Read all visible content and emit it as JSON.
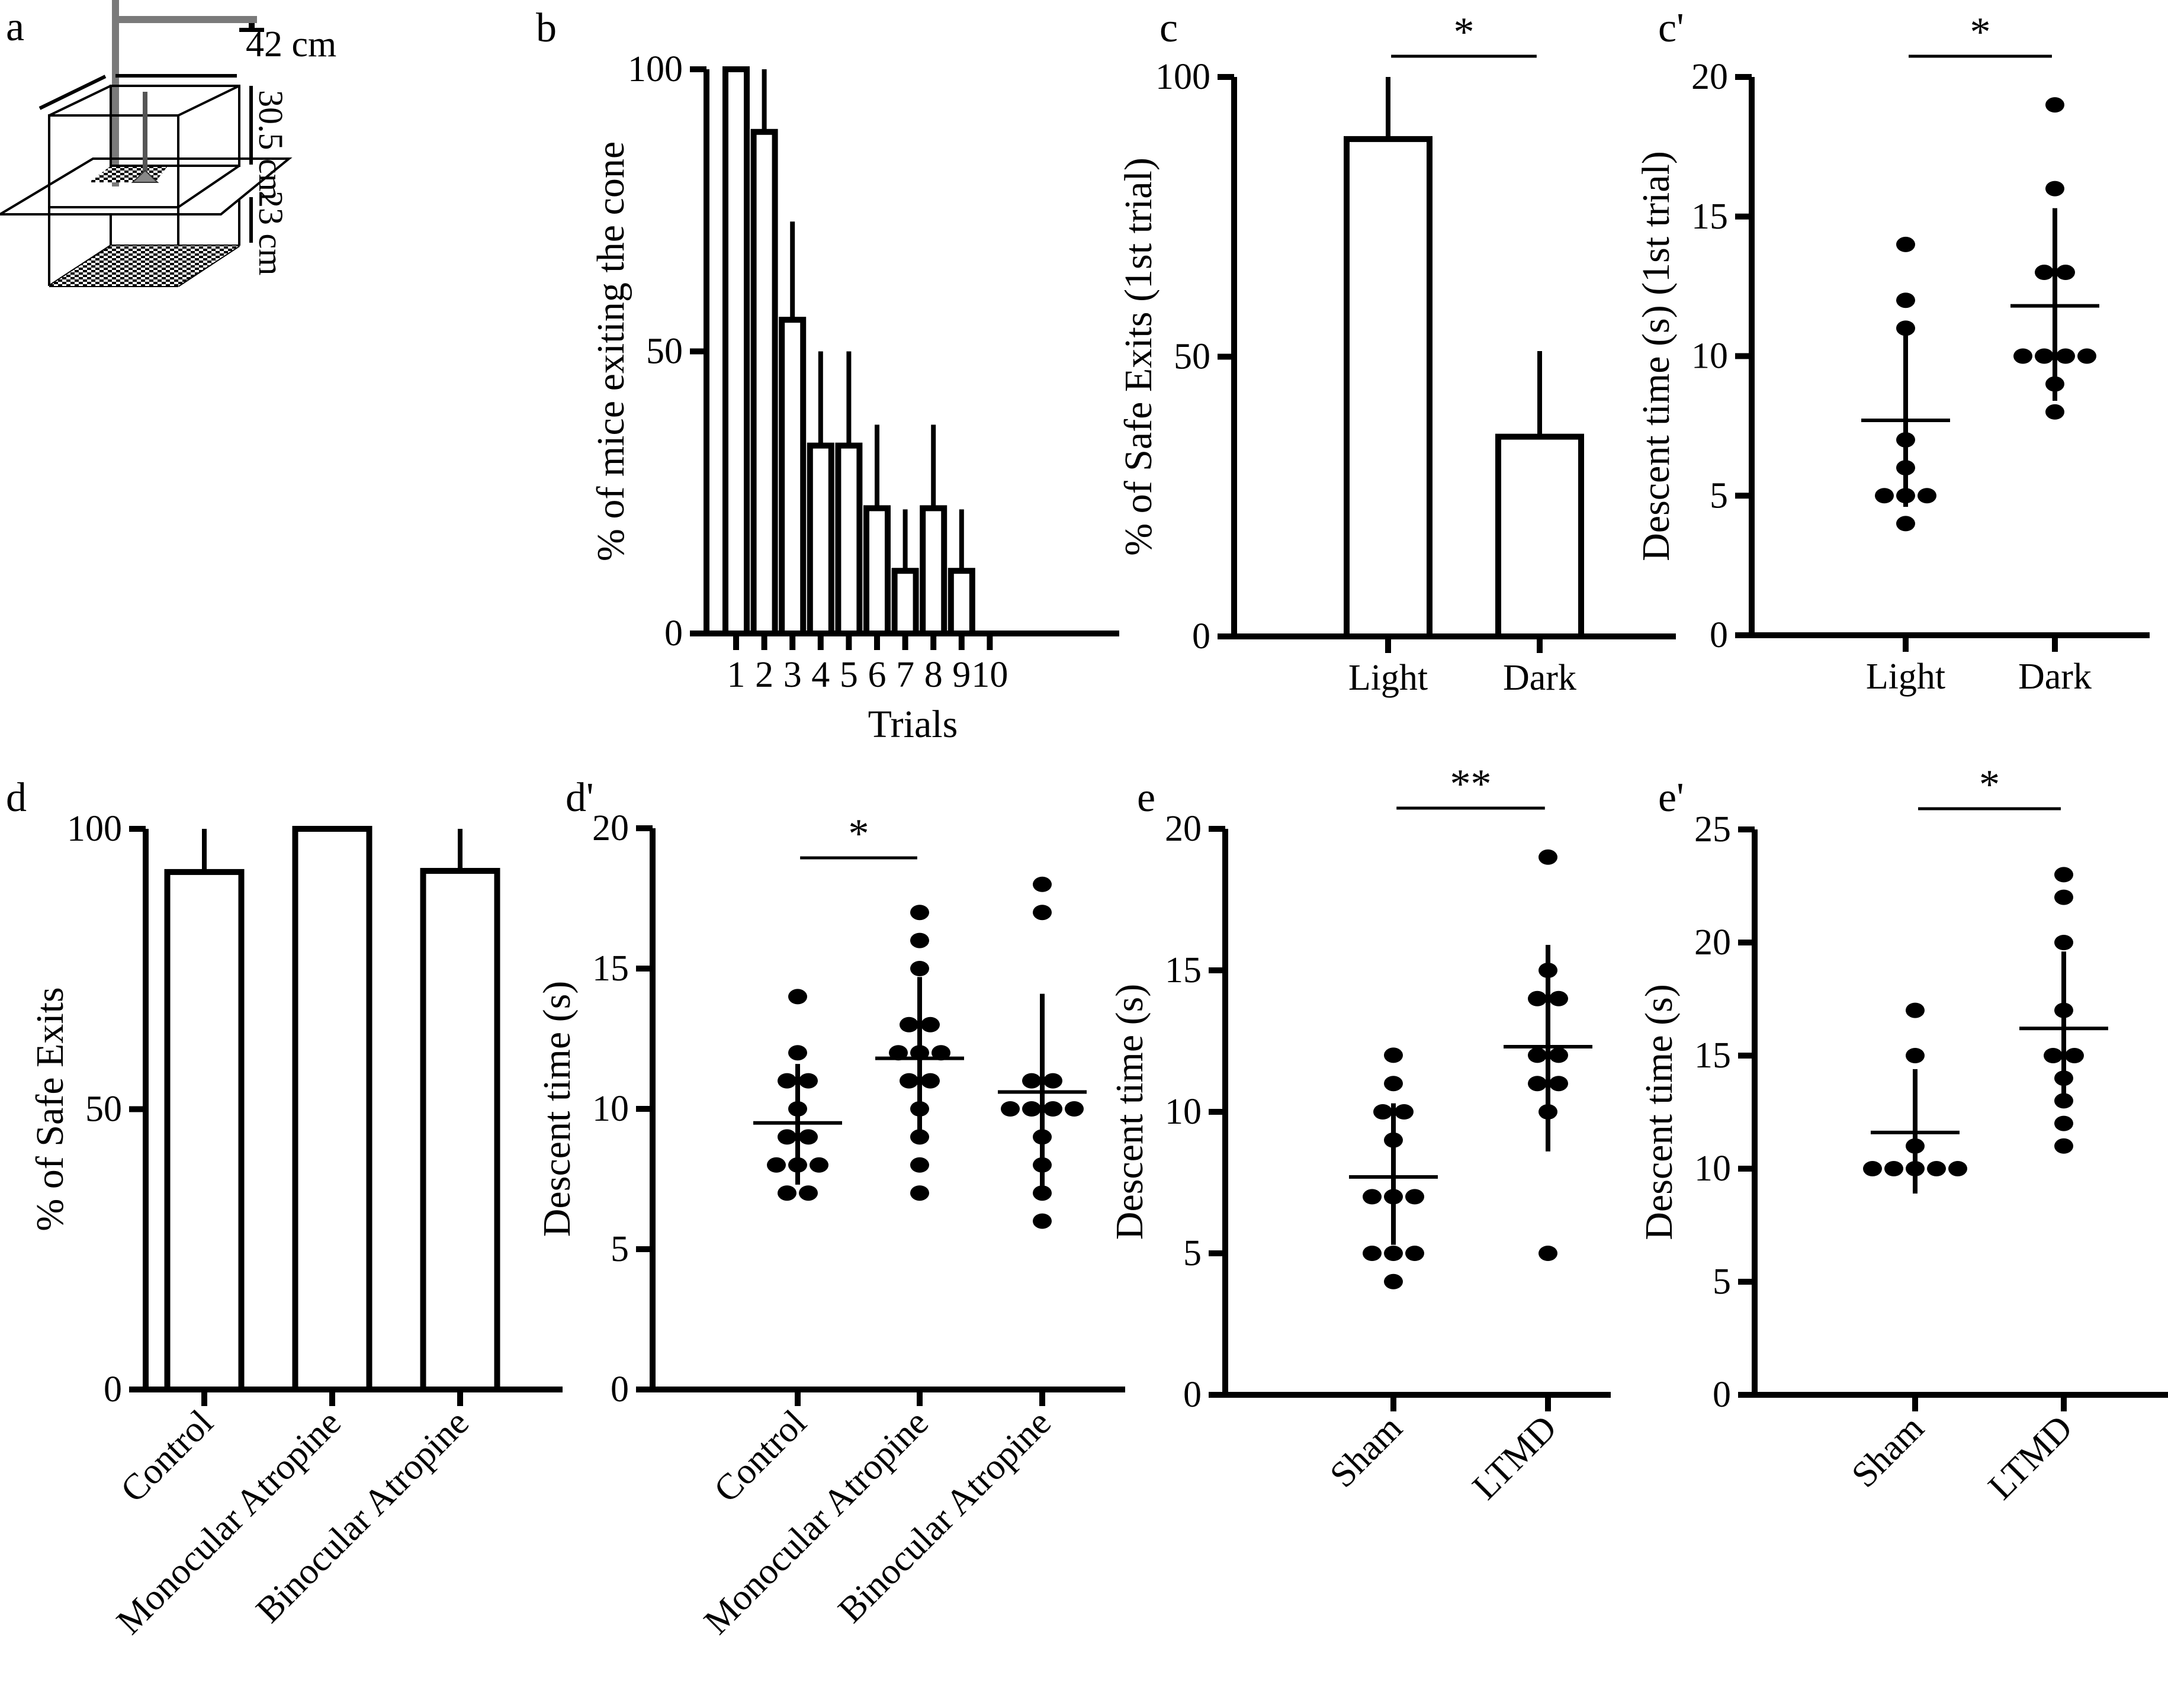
{
  "panel_a": {
    "letter": "a",
    "dimensions": {
      "width": "42 cm",
      "upper_height": "30.5 cm",
      "lower_height": "23 cm"
    },
    "colors": {
      "stand": "#7a7a7a",
      "lines": "#000000"
    }
  },
  "chart_data": [
    {
      "id": "b",
      "letter": "b",
      "type": "bar",
      "title": "",
      "xlabel": "Trials",
      "ylabel": "% of mice exiting the cone",
      "categories": [
        "1",
        "2",
        "3",
        "4",
        "5",
        "6",
        "7",
        "8",
        "9",
        "10"
      ],
      "values": [
        100,
        88.9,
        55.6,
        33.3,
        33.3,
        22.2,
        11.1,
        22.2,
        11.1,
        0
      ],
      "error_upper": [
        100,
        100,
        73,
        50,
        50,
        37,
        22,
        37,
        22,
        0
      ],
      "ylim": [
        0,
        100
      ],
      "yticks": [
        "0",
        "50",
        "100"
      ],
      "grid": false,
      "legend": "none",
      "significance": []
    },
    {
      "id": "c",
      "letter": "c",
      "type": "bar",
      "xlabel": "",
      "ylabel": "% of Safe Exits (1st trial)",
      "categories": [
        "Light",
        "Dark"
      ],
      "values": [
        88.9,
        35.7
      ],
      "error_upper": [
        100,
        51
      ],
      "ylim": [
        0,
        100
      ],
      "yticks": [
        "0",
        "50",
        "100"
      ],
      "grid": false,
      "legend": "none",
      "significance": [
        {
          "from": 0,
          "to": 1,
          "label": "*"
        }
      ]
    },
    {
      "id": "c2",
      "letter": "c'",
      "type": "scatter",
      "xlabel": "",
      "ylabel": "Descent time (s) (1st trial)",
      "categories": [
        "Light",
        "Dark"
      ],
      "groups": [
        {
          "name": "Light",
          "points": [
            14,
            12,
            11,
            7,
            6,
            5,
            5,
            5,
            4
          ],
          "mean": 7.7,
          "err_low": 4.6,
          "err_high": 10.8
        },
        {
          "name": "Dark",
          "points": [
            19,
            16,
            13,
            13,
            10,
            10,
            10,
            10,
            9,
            8
          ],
          "mean": 11.8,
          "err_low": 8.4,
          "err_high": 15.3
        }
      ],
      "ylim": [
        0,
        20
      ],
      "yticks": [
        "0",
        "5",
        "10",
        "15",
        "20"
      ],
      "grid": false,
      "legend": "none",
      "significance": [
        {
          "from": 0,
          "to": 1,
          "label": "*"
        }
      ]
    },
    {
      "id": "d",
      "letter": "d",
      "type": "bar",
      "xlabel": "",
      "ylabel": "% of Safe Exits",
      "categories": [
        "Control",
        "Monocular Atropine",
        "Binocular Atropine"
      ],
      "values": [
        92.3,
        100,
        92.5
      ],
      "error_upper": [
        100,
        100,
        100
      ],
      "ylim": [
        0,
        100
      ],
      "yticks": [
        "0",
        "50",
        "100"
      ],
      "grid": false,
      "legend": "none",
      "significance": []
    },
    {
      "id": "d2",
      "letter": "d'",
      "type": "scatter",
      "xlabel": "",
      "ylabel": "Descent time (s)",
      "categories": [
        "Control",
        "Monocular Atropine",
        "Binocular Atropine"
      ],
      "groups": [
        {
          "name": "Control",
          "points": [
            14,
            12,
            11,
            11,
            10,
            9,
            9,
            8,
            8,
            8,
            7,
            7
          ],
          "mean": 9.5,
          "err_low": 7.3,
          "err_high": 11.6
        },
        {
          "name": "Monocular Atropine",
          "points": [
            17,
            16,
            15,
            13,
            13,
            12,
            12,
            12,
            11,
            11,
            10,
            9,
            8,
            7
          ],
          "mean": 11.8,
          "err_low": 9.0,
          "err_high": 14.7
        },
        {
          "name": "Binocular Atropine",
          "points": [
            18,
            17,
            11,
            11,
            10,
            10,
            10,
            10,
            9,
            8,
            7,
            6
          ],
          "mean": 10.6,
          "err_low": 7.1,
          "err_high": 14.1
        }
      ],
      "ylim": [
        0,
        20
      ],
      "yticks": [
        "0",
        "5",
        "10",
        "15",
        "20"
      ],
      "grid": false,
      "legend": "none",
      "significance": [
        {
          "from": 0,
          "to": 1,
          "label": "*"
        }
      ]
    },
    {
      "id": "e",
      "letter": "e",
      "type": "scatter",
      "xlabel": "",
      "ylabel": "Descent time (s)",
      "categories": [
        "Sham",
        "LTMD"
      ],
      "groups": [
        {
          "name": "Sham",
          "points": [
            12,
            11,
            10,
            10,
            9,
            7,
            7,
            7,
            5,
            5,
            5,
            4
          ],
          "mean": 7.7,
          "err_low": 5.3,
          "err_high": 10.3
        },
        {
          "name": "LTMD",
          "points": [
            19,
            15,
            14,
            14,
            12,
            12,
            11,
            11,
            10,
            5
          ],
          "mean": 12.3,
          "err_low": 8.6,
          "err_high": 15.9
        }
      ],
      "ylim": [
        0,
        20
      ],
      "yticks": [
        "0",
        "5",
        "10",
        "15",
        "20"
      ],
      "grid": false,
      "legend": "none",
      "significance": [
        {
          "from": 0,
          "to": 1,
          "label": "**"
        }
      ]
    },
    {
      "id": "e2",
      "letter": "e'",
      "type": "scatter",
      "xlabel": "",
      "ylabel": "Descent time (s)",
      "categories": [
        "Sham",
        "LTMD"
      ],
      "groups": [
        {
          "name": "Sham",
          "points": [
            17,
            15,
            11,
            10,
            10,
            10,
            10,
            10
          ],
          "mean": 11.6,
          "err_low": 8.9,
          "err_high": 14.4
        },
        {
          "name": "LTMD",
          "points": [
            23,
            22,
            20,
            17,
            15,
            15,
            14,
            13,
            12,
            11
          ],
          "mean": 16.2,
          "err_low": 12.8,
          "err_high": 19.6
        }
      ],
      "ylim": [
        0,
        25
      ],
      "yticks": [
        "0",
        "5",
        "10",
        "15",
        "20",
        "25"
      ],
      "grid": false,
      "legend": "none",
      "significance": [
        {
          "from": 0,
          "to": 1,
          "label": "*"
        }
      ]
    }
  ]
}
